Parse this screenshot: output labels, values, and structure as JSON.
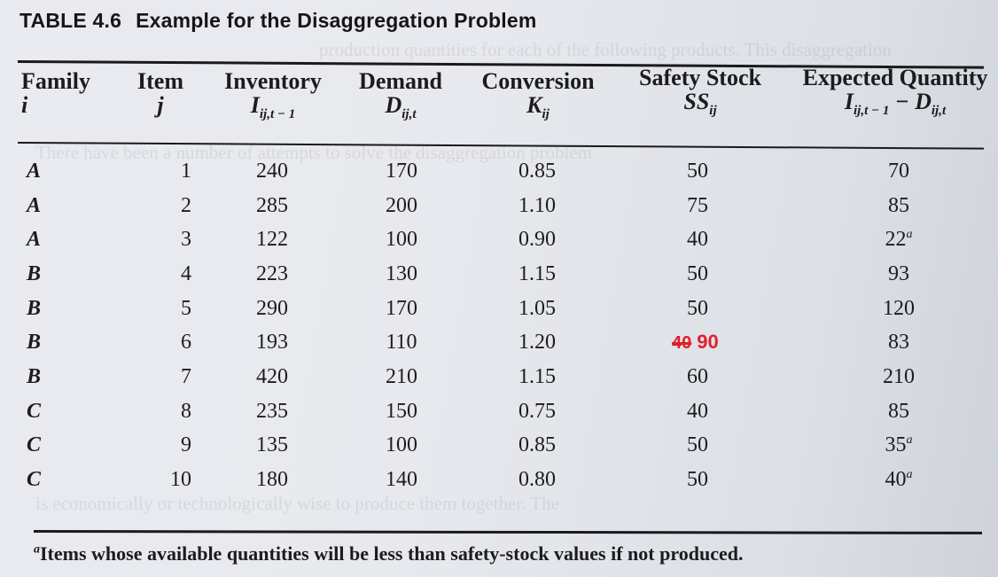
{
  "title": {
    "number": "TABLE 4.6",
    "caption": "Example for the Disaggregation Problem"
  },
  "headers": [
    {
      "line1": "Family",
      "line2": "i"
    },
    {
      "line1": "Item",
      "line2": "j"
    },
    {
      "line1": "Inventory",
      "line2": "I",
      "sub": "ij,t − 1"
    },
    {
      "line1": "Demand",
      "line2": "D",
      "sub": "ij,t"
    },
    {
      "line1": "Conversion",
      "line2": "K",
      "sub": "ij"
    },
    {
      "line1": "Safety Stock",
      "line2": "SS",
      "sub": "ij"
    },
    {
      "line1": "Expected Quantity",
      "line2": "I",
      "sub": "ij,t − 1",
      "tail": "− D",
      "tail_sub": "ij,t"
    }
  ],
  "rows": [
    {
      "family": "A",
      "item": "1",
      "inventory": "240",
      "demand": "170",
      "conversion": "0.85",
      "safety": "50",
      "expected": "70",
      "note": ""
    },
    {
      "family": "A",
      "item": "2",
      "inventory": "285",
      "demand": "200",
      "conversion": "1.10",
      "safety": "75",
      "expected": "85",
      "note": ""
    },
    {
      "family": "A",
      "item": "3",
      "inventory": "122",
      "demand": "100",
      "conversion": "0.90",
      "safety": "40",
      "expected": "22",
      "note": "a"
    },
    {
      "family": "B",
      "item": "4",
      "inventory": "223",
      "demand": "130",
      "conversion": "1.15",
      "safety": "50",
      "expected": "93",
      "note": ""
    },
    {
      "family": "B",
      "item": "5",
      "inventory": "290",
      "demand": "170",
      "conversion": "1.05",
      "safety": "50",
      "expected": "120",
      "note": ""
    },
    {
      "family": "B",
      "item": "6",
      "inventory": "193",
      "demand": "110",
      "conversion": "1.20",
      "safety": "40",
      "safety_correction": "90",
      "expected": "83",
      "note": ""
    },
    {
      "family": "B",
      "item": "7",
      "inventory": "420",
      "demand": "210",
      "conversion": "1.15",
      "safety": "60",
      "expected": "210",
      "note": ""
    },
    {
      "family": "C",
      "item": "8",
      "inventory": "235",
      "demand": "150",
      "conversion": "0.75",
      "safety": "40",
      "expected": "85",
      "note": ""
    },
    {
      "family": "C",
      "item": "9",
      "inventory": "135",
      "demand": "100",
      "conversion": "0.85",
      "safety": "50",
      "expected": "35",
      "note": "a"
    },
    {
      "family": "C",
      "item": "10",
      "inventory": "180",
      "demand": "140",
      "conversion": "0.80",
      "safety": "50",
      "expected": "40",
      "note": "a"
    }
  ],
  "footnote": {
    "marker": "a",
    "text": "Items whose available quantities will be less than safety-stock values if not produced."
  },
  "colors": {
    "annotation": "#e0202e",
    "text": "#1c1c1c",
    "paper": "#e7e9ee"
  }
}
